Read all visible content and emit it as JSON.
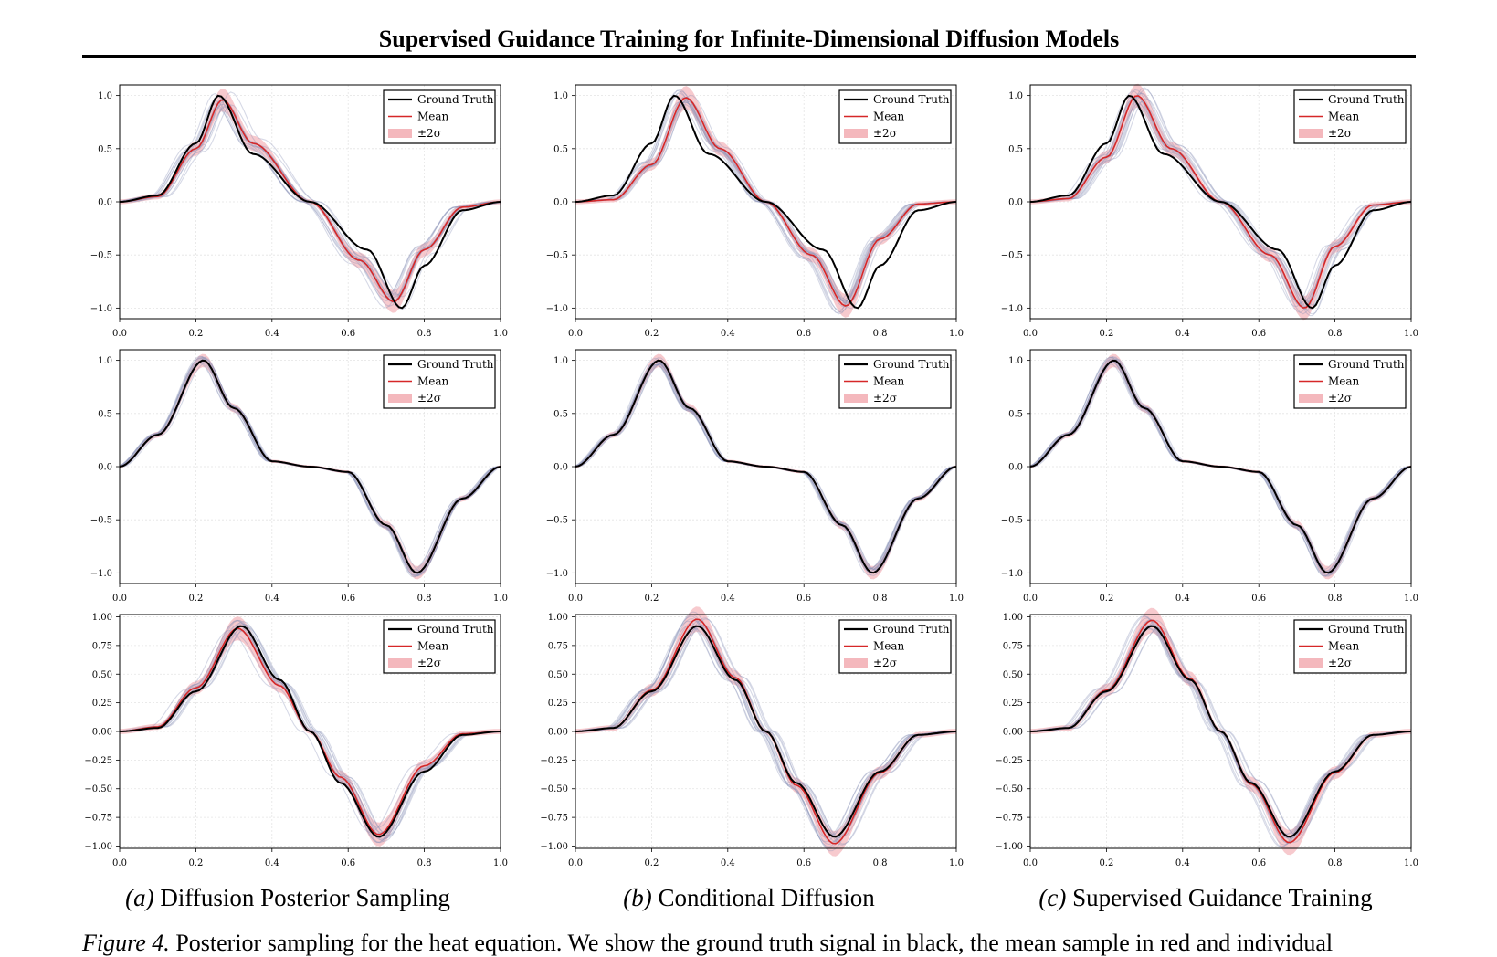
{
  "header": {
    "title": "Supervised Guidance Training for Infinite-Dimensional Diffusion Models"
  },
  "columns": [
    {
      "label": "(a)",
      "title": "Diffusion Posterior Sampling"
    },
    {
      "label": "(b)",
      "title": "Conditional Diffusion"
    },
    {
      "label": "(c)",
      "title": "Supervised Guidance Training"
    }
  ],
  "caption": {
    "label": "Figure 4.",
    "text": "Posterior sampling for the heat equation. We show the ground truth signal in black, the mean sample in red and individual"
  },
  "colors": {
    "ground_truth": "#000000",
    "mean": "#d62728",
    "band": "#f4b8bd",
    "samples": "#8a93b8"
  },
  "chart_data": [
    {
      "panel": "row1-a",
      "type": "line",
      "legend": [
        "Ground Truth",
        "Mean",
        "±2σ"
      ],
      "xlim": [
        0,
        1
      ],
      "ylim": [
        -1.1,
        1.1
      ],
      "xticks": [
        "0.0",
        "0.2",
        "0.4",
        "0.6",
        "0.8",
        "1.0"
      ],
      "yticks": [
        "1.0",
        "0.5",
        "0.0",
        "−0.5",
        "−1.0"
      ],
      "grid": true,
      "legend_position": "top-right",
      "series": [
        {
          "name": "Ground Truth",
          "x": [
            0,
            0.1,
            0.2,
            0.26,
            0.35,
            0.5,
            0.65,
            0.74,
            0.8,
            0.9,
            1.0
          ],
          "y": [
            0,
            0.06,
            0.55,
            1.0,
            0.45,
            0,
            -0.45,
            -1.0,
            -0.6,
            -0.08,
            0
          ]
        },
        {
          "name": "Mean",
          "x": [
            0,
            0.1,
            0.2,
            0.27,
            0.35,
            0.5,
            0.63,
            0.72,
            0.8,
            0.9,
            1.0
          ],
          "y": [
            0,
            0.05,
            0.5,
            0.96,
            0.55,
            0,
            -0.55,
            -0.94,
            -0.45,
            -0.05,
            0
          ]
        }
      ]
    },
    {
      "panel": "row1-b",
      "type": "line",
      "legend": [
        "Ground Truth",
        "Mean",
        "±2σ"
      ],
      "xlim": [
        0,
        1
      ],
      "ylim": [
        -1.1,
        1.1
      ],
      "xticks": [
        "0.0",
        "0.2",
        "0.4",
        "0.6",
        "0.8",
        "1.0"
      ],
      "yticks": [
        "1.0",
        "0.5",
        "0.0",
        "−0.5",
        "−1.0"
      ],
      "grid": true,
      "legend_position": "top-right",
      "series": [
        {
          "name": "Ground Truth",
          "x": [
            0,
            0.1,
            0.2,
            0.26,
            0.35,
            0.5,
            0.65,
            0.74,
            0.8,
            0.9,
            1.0
          ],
          "y": [
            0,
            0.06,
            0.55,
            1.0,
            0.45,
            0,
            -0.45,
            -1.0,
            -0.6,
            -0.08,
            0
          ]
        },
        {
          "name": "Mean",
          "x": [
            0,
            0.1,
            0.2,
            0.29,
            0.38,
            0.5,
            0.62,
            0.71,
            0.8,
            0.9,
            1.0
          ],
          "y": [
            0,
            0.02,
            0.35,
            0.98,
            0.5,
            0,
            -0.5,
            -0.98,
            -0.35,
            -0.02,
            0
          ]
        }
      ]
    },
    {
      "panel": "row1-c",
      "type": "line",
      "legend": [
        "Ground Truth",
        "Mean",
        "±2σ"
      ],
      "xlim": [
        0,
        1
      ],
      "ylim": [
        -1.1,
        1.1
      ],
      "xticks": [
        "0.0",
        "0.2",
        "0.4",
        "0.6",
        "0.8",
        "1.0"
      ],
      "yticks": [
        "1.0",
        "0.5",
        "0.0",
        "−0.5",
        "−1.0"
      ],
      "grid": true,
      "legend_position": "top-right",
      "series": [
        {
          "name": "Ground Truth",
          "x": [
            0,
            0.1,
            0.2,
            0.26,
            0.35,
            0.5,
            0.65,
            0.74,
            0.8,
            0.9,
            1.0
          ],
          "y": [
            0,
            0.06,
            0.55,
            1.0,
            0.45,
            0,
            -0.45,
            -1.0,
            -0.6,
            -0.08,
            0
          ]
        },
        {
          "name": "Mean",
          "x": [
            0,
            0.1,
            0.2,
            0.28,
            0.37,
            0.5,
            0.63,
            0.72,
            0.8,
            0.9,
            1.0
          ],
          "y": [
            0,
            0.03,
            0.42,
            1.0,
            0.5,
            0,
            -0.5,
            -1.0,
            -0.42,
            -0.03,
            0
          ]
        }
      ]
    },
    {
      "panel": "row2-a",
      "type": "line",
      "legend": [
        "Ground Truth",
        "Mean",
        "±2σ"
      ],
      "xlim": [
        0,
        1
      ],
      "ylim": [
        -1.1,
        1.1
      ],
      "xticks": [
        "0.0",
        "0.2",
        "0.4",
        "0.6",
        "0.8",
        "1.0"
      ],
      "yticks": [
        "1.0",
        "0.5",
        "0.0",
        "−0.5",
        "−1.0"
      ],
      "grid": true,
      "legend_position": "top-right",
      "series": [
        {
          "name": "Ground Truth",
          "x": [
            0,
            0.1,
            0.22,
            0.3,
            0.4,
            0.5,
            0.6,
            0.7,
            0.78,
            0.9,
            1.0
          ],
          "y": [
            0,
            0.3,
            1.0,
            0.55,
            0.05,
            0,
            -0.05,
            -0.55,
            -1.0,
            -0.3,
            0
          ]
        },
        {
          "name": "Mean",
          "x": [
            0,
            0.1,
            0.22,
            0.3,
            0.4,
            0.5,
            0.6,
            0.7,
            0.78,
            0.9,
            1.0
          ],
          "y": [
            0,
            0.3,
            1.0,
            0.55,
            0.05,
            0,
            -0.05,
            -0.55,
            -1.0,
            -0.3,
            0
          ]
        }
      ]
    },
    {
      "panel": "row2-b",
      "type": "line",
      "legend": [
        "Ground Truth",
        "Mean",
        "±2σ"
      ],
      "xlim": [
        0,
        1
      ],
      "ylim": [
        -1.1,
        1.1
      ],
      "xticks": [
        "0.0",
        "0.2",
        "0.4",
        "0.6",
        "0.8",
        "1.0"
      ],
      "yticks": [
        "1.0",
        "0.5",
        "0.0",
        "−0.5",
        "−1.0"
      ],
      "grid": true,
      "legend_position": "top-right",
      "series": [
        {
          "name": "Ground Truth",
          "x": [
            0,
            0.1,
            0.22,
            0.3,
            0.4,
            0.5,
            0.6,
            0.7,
            0.78,
            0.9,
            1.0
          ],
          "y": [
            0,
            0.3,
            1.0,
            0.55,
            0.05,
            0,
            -0.05,
            -0.55,
            -1.0,
            -0.3,
            0
          ]
        },
        {
          "name": "Mean",
          "x": [
            0,
            0.1,
            0.22,
            0.3,
            0.4,
            0.5,
            0.6,
            0.7,
            0.78,
            0.9,
            1.0
          ],
          "y": [
            0,
            0.3,
            1.0,
            0.55,
            0.05,
            0,
            -0.05,
            -0.55,
            -1.0,
            -0.3,
            0
          ]
        }
      ]
    },
    {
      "panel": "row2-c",
      "type": "line",
      "legend": [
        "Ground Truth",
        "Mean",
        "±2σ"
      ],
      "xlim": [
        0,
        1
      ],
      "ylim": [
        -1.1,
        1.1
      ],
      "xticks": [
        "0.0",
        "0.2",
        "0.4",
        "0.6",
        "0.8",
        "1.0"
      ],
      "yticks": [
        "1.0",
        "0.5",
        "0.0",
        "−0.5",
        "−1.0"
      ],
      "grid": true,
      "legend_position": "top-right",
      "series": [
        {
          "name": "Ground Truth",
          "x": [
            0,
            0.1,
            0.22,
            0.3,
            0.4,
            0.5,
            0.6,
            0.7,
            0.78,
            0.9,
            1.0
          ],
          "y": [
            0,
            0.3,
            1.0,
            0.55,
            0.05,
            0,
            -0.05,
            -0.55,
            -1.0,
            -0.3,
            0
          ]
        },
        {
          "name": "Mean",
          "x": [
            0,
            0.1,
            0.22,
            0.3,
            0.4,
            0.5,
            0.6,
            0.7,
            0.78,
            0.9,
            1.0
          ],
          "y": [
            0,
            0.3,
            1.0,
            0.55,
            0.05,
            0,
            -0.05,
            -0.55,
            -1.0,
            -0.3,
            0
          ]
        }
      ]
    },
    {
      "panel": "row3-a",
      "type": "line",
      "legend": [
        "Ground Truth",
        "Mean",
        "±2σ"
      ],
      "xlim": [
        0,
        1
      ],
      "ylim": [
        -1.02,
        1.02
      ],
      "xticks": [
        "0.0",
        "0.2",
        "0.4",
        "0.6",
        "0.8",
        "1.0"
      ],
      "yticks": [
        "1.00",
        "0.75",
        "0.50",
        "0.25",
        "0.00",
        "−0.25",
        "−0.50",
        "−0.75",
        "−1.00"
      ],
      "grid": true,
      "legend_position": "top-right",
      "series": [
        {
          "name": "Ground Truth",
          "x": [
            0,
            0.1,
            0.2,
            0.32,
            0.42,
            0.5,
            0.58,
            0.68,
            0.8,
            0.9,
            1.0
          ],
          "y": [
            0,
            0.03,
            0.35,
            0.92,
            0.45,
            0,
            -0.45,
            -0.92,
            -0.35,
            -0.03,
            0
          ]
        },
        {
          "name": "Mean",
          "x": [
            0,
            0.1,
            0.2,
            0.31,
            0.42,
            0.5,
            0.58,
            0.68,
            0.8,
            0.9,
            1.0
          ],
          "y": [
            0,
            0.04,
            0.38,
            0.9,
            0.4,
            0,
            -0.4,
            -0.9,
            -0.3,
            -0.02,
            0
          ]
        }
      ]
    },
    {
      "panel": "row3-b",
      "type": "line",
      "legend": [
        "Ground Truth",
        "Mean",
        "±2σ"
      ],
      "xlim": [
        0,
        1
      ],
      "ylim": [
        -1.02,
        1.02
      ],
      "xticks": [
        "0.0",
        "0.2",
        "0.4",
        "0.6",
        "0.8",
        "1.0"
      ],
      "yticks": [
        "1.00",
        "0.75",
        "0.50",
        "0.25",
        "0.00",
        "−0.25",
        "−0.50",
        "−0.75",
        "−1.00"
      ],
      "grid": true,
      "legend_position": "top-right",
      "series": [
        {
          "name": "Ground Truth",
          "x": [
            0,
            0.1,
            0.2,
            0.32,
            0.42,
            0.5,
            0.58,
            0.68,
            0.8,
            0.9,
            1.0
          ],
          "y": [
            0,
            0.03,
            0.35,
            0.92,
            0.45,
            0,
            -0.45,
            -0.92,
            -0.35,
            -0.03,
            0
          ]
        },
        {
          "name": "Mean",
          "x": [
            0,
            0.1,
            0.2,
            0.32,
            0.42,
            0.5,
            0.58,
            0.68,
            0.8,
            0.9,
            1.0
          ],
          "y": [
            0,
            0.03,
            0.36,
            0.98,
            0.47,
            0,
            -0.47,
            -0.98,
            -0.36,
            -0.03,
            0
          ]
        }
      ]
    },
    {
      "panel": "row3-c",
      "type": "line",
      "legend": [
        "Ground Truth",
        "Mean",
        "±2σ"
      ],
      "xlim": [
        0,
        1
      ],
      "ylim": [
        -1.02,
        1.02
      ],
      "xticks": [
        "0.0",
        "0.2",
        "0.4",
        "0.6",
        "0.8",
        "1.0"
      ],
      "yticks": [
        "1.00",
        "0.75",
        "0.50",
        "0.25",
        "0.00",
        "−0.25",
        "−0.50",
        "−0.75",
        "−1.00"
      ],
      "grid": true,
      "legend_position": "top-right",
      "series": [
        {
          "name": "Ground Truth",
          "x": [
            0,
            0.1,
            0.2,
            0.32,
            0.42,
            0.5,
            0.58,
            0.68,
            0.8,
            0.9,
            1.0
          ],
          "y": [
            0,
            0.03,
            0.35,
            0.92,
            0.45,
            0,
            -0.45,
            -0.92,
            -0.35,
            -0.03,
            0
          ]
        },
        {
          "name": "Mean",
          "x": [
            0,
            0.1,
            0.2,
            0.32,
            0.42,
            0.5,
            0.58,
            0.68,
            0.8,
            0.9,
            1.0
          ],
          "y": [
            0,
            0.03,
            0.36,
            0.97,
            0.46,
            0,
            -0.46,
            -0.97,
            -0.36,
            -0.03,
            0
          ]
        }
      ]
    }
  ]
}
